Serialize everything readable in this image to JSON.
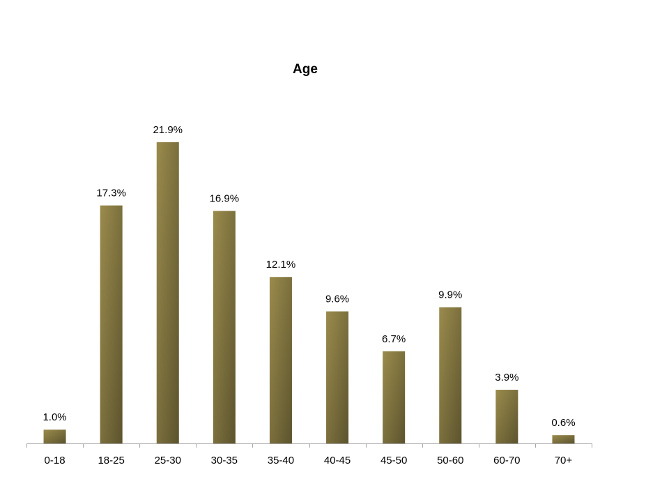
{
  "chart_data": {
    "type": "bar",
    "title": "Age",
    "categories": [
      "0-18",
      "18-25",
      "25-30",
      "30-35",
      "35-40",
      "40-45",
      "45-50",
      "50-60",
      "60-70",
      "70+"
    ],
    "values": [
      1.0,
      17.3,
      21.9,
      16.9,
      12.1,
      9.6,
      6.7,
      9.9,
      3.9,
      0.6
    ],
    "value_labels": [
      "1.0%",
      "17.3%",
      "21.9%",
      "16.9%",
      "12.1%",
      "9.6%",
      "6.7%",
      "9.9%",
      "3.9%",
      "0.6%"
    ],
    "color": "#9a8b4c"
  }
}
